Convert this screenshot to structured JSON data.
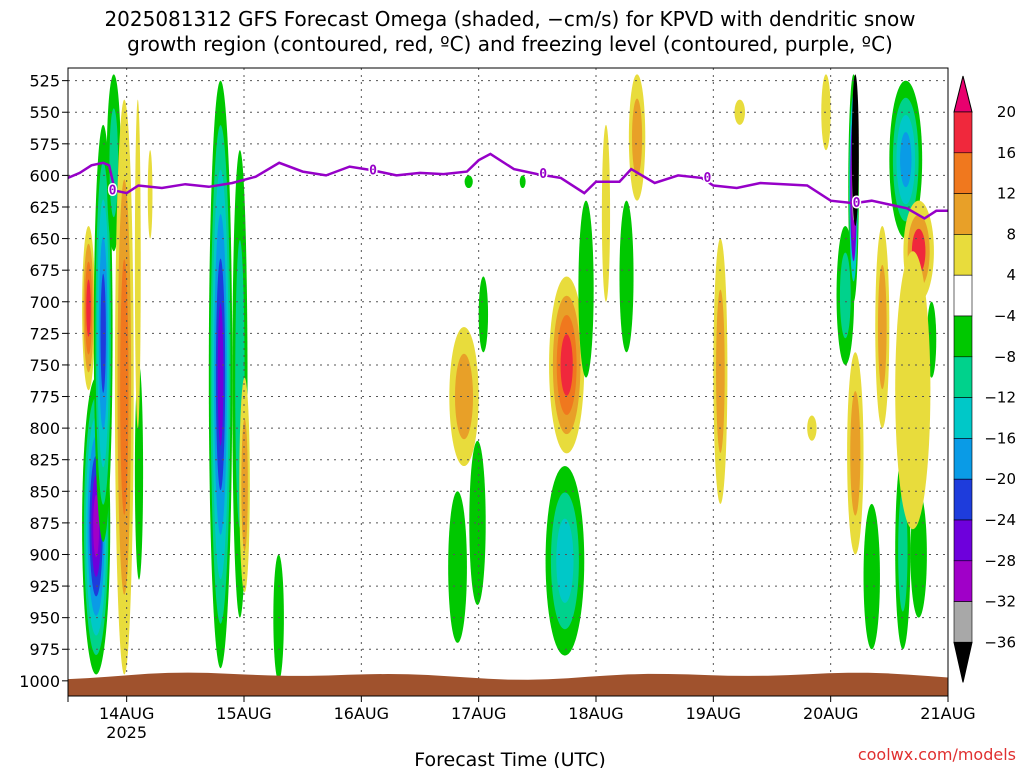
{
  "chart_data": {
    "type": "heatmap",
    "title_lines": [
      "2025081312 GFS Forecast Omega (shaded, −cm/s) for KPVD with dendritic snow",
      "growth region (contoured, red, ºC) and freezing level (contoured, purple, ºC)"
    ],
    "xlabel": "Forecast Time (UTC)",
    "ylabel": "",
    "credit": "coolwx.com/models",
    "x_ticks": [
      {
        "day": 13.5,
        "label": "",
        "sublabel": ""
      },
      {
        "day": 14,
        "label": "14AUG",
        "sublabel": "2025"
      },
      {
        "day": 15,
        "label": "15AUG",
        "sublabel": ""
      },
      {
        "day": 16,
        "label": "16AUG",
        "sublabel": ""
      },
      {
        "day": 17,
        "label": "17AUG",
        "sublabel": ""
      },
      {
        "day": 18,
        "label": "18AUG",
        "sublabel": ""
      },
      {
        "day": 19,
        "label": "19AUG",
        "sublabel": ""
      },
      {
        "day": 20,
        "label": "20AUG",
        "sublabel": ""
      },
      {
        "day": 21,
        "label": "21AUG",
        "sublabel": ""
      }
    ],
    "xlim": [
      13.5,
      21
    ],
    "y_ticks": [
      "525",
      "550",
      "575",
      "600",
      "625",
      "650",
      "675",
      "700",
      "725",
      "750",
      "775",
      "800",
      "825",
      "850",
      "875",
      "900",
      "925",
      "950",
      "975",
      "1000"
    ],
    "ylim": [
      1012,
      515
    ],
    "y_axis": "pressure (hPa), inverted",
    "grid": true,
    "colorbar": {
      "labels": [
        "20",
        "16",
        "12",
        "8",
        "4",
        "−4",
        "−8",
        "−12",
        "−16",
        "−20",
        "−24",
        "−28",
        "−32",
        "−36"
      ],
      "colors": [
        "#e8006e",
        "#f0283c",
        "#f0781e",
        "#e8a028",
        "#e8dc3c",
        "#ffffff",
        "#00c800",
        "#00d28c",
        "#00c8c8",
        "#0a9be6",
        "#1e3cdc",
        "#6e00dc",
        "#a000c8",
        "#a8a8a8",
        "#000000"
      ]
    },
    "freezing_level": {
      "label": "0",
      "color": "#9600c8",
      "points": [
        [
          13.5,
          602
        ],
        [
          13.6,
          598
        ],
        [
          13.7,
          592
        ],
        [
          13.8,
          590
        ],
        [
          13.85,
          592
        ],
        [
          13.9,
          612
        ],
        [
          14.0,
          614
        ],
        [
          14.1,
          608
        ],
        [
          14.3,
          610
        ],
        [
          14.5,
          607
        ],
        [
          14.7,
          609
        ],
        [
          14.9,
          606
        ],
        [
          15.1,
          601
        ],
        [
          15.3,
          590
        ],
        [
          15.5,
          597
        ],
        [
          15.7,
          600
        ],
        [
          15.9,
          593
        ],
        [
          16.1,
          596
        ],
        [
          16.3,
          600
        ],
        [
          16.5,
          598
        ],
        [
          16.7,
          599
        ],
        [
          16.9,
          597
        ],
        [
          17.0,
          588
        ],
        [
          17.1,
          583
        ],
        [
          17.3,
          595
        ],
        [
          17.5,
          599
        ],
        [
          17.7,
          602
        ],
        [
          17.9,
          614
        ],
        [
          18.0,
          605
        ],
        [
          18.2,
          605
        ],
        [
          18.3,
          595
        ],
        [
          18.5,
          606
        ],
        [
          18.7,
          600
        ],
        [
          18.9,
          602
        ],
        [
          19.0,
          608
        ],
        [
          19.2,
          610
        ],
        [
          19.4,
          606
        ],
        [
          19.6,
          607
        ],
        [
          19.8,
          608
        ],
        [
          20.0,
          620
        ],
        [
          20.2,
          622
        ],
        [
          20.35,
          620
        ],
        [
          20.5,
          623
        ],
        [
          20.65,
          626
        ],
        [
          20.8,
          634
        ],
        [
          20.9,
          628
        ],
        [
          21.0,
          628
        ]
      ]
    },
    "ground": {
      "color": "#a0522d",
      "top_hpa": 996
    },
    "omega_regions": [
      {
        "x0": 13.62,
        "x1": 13.86,
        "p0": 760,
        "p1": 995,
        "colors": [
          "#00c800",
          "#00d28c",
          "#00c8c8",
          "#0a9be6",
          "#1e3cdc",
          "#6e00dc",
          "#a000c8"
        ]
      },
      {
        "x0": 13.62,
        "x1": 13.73,
        "p0": 640,
        "p1": 770,
        "colors": [
          "#e8dc3c",
          "#e8a028",
          "#f0781e",
          "#f0283c"
        ]
      },
      {
        "x0": 13.72,
        "x1": 13.88,
        "p0": 560,
        "p1": 890,
        "colors": [
          "#00c800",
          "#00d28c",
          "#00c8c8",
          "#0a9be6",
          "#1e3cdc"
        ]
      },
      {
        "x0": 13.83,
        "x1": 13.95,
        "p0": 520,
        "p1": 660,
        "colors": [
          "#00c800",
          "#00d28c"
        ]
      },
      {
        "x0": 13.9,
        "x1": 14.06,
        "p0": 540,
        "p1": 995,
        "colors": [
          "#e8dc3c",
          "#e8a028",
          "#f0781e"
        ]
      },
      {
        "x0": 14.07,
        "x1": 14.14,
        "p0": 750,
        "p1": 920,
        "colors": [
          "#00c800"
        ]
      },
      {
        "x0": 14.07,
        "x1": 14.12,
        "p0": 540,
        "p1": 800,
        "colors": [
          "#e8dc3c"
        ]
      },
      {
        "x0": 14.18,
        "x1": 14.22,
        "p0": 580,
        "p1": 650,
        "colors": [
          "#e8dc3c"
        ]
      },
      {
        "x0": 14.7,
        "x1": 14.9,
        "p0": 525,
        "p1": 990,
        "colors": [
          "#00c800",
          "#00d28c",
          "#00c8c8",
          "#0a9be6",
          "#1e3cdc",
          "#6e00dc"
        ]
      },
      {
        "x0": 14.9,
        "x1": 15.03,
        "p0": 580,
        "p1": 950,
        "colors": [
          "#00c800",
          "#00d28c"
        ]
      },
      {
        "x0": 14.96,
        "x1": 15.05,
        "p0": 760,
        "p1": 930,
        "colors": [
          "#e8dc3c",
          "#e8a028"
        ]
      },
      {
        "x0": 15.25,
        "x1": 15.34,
        "p0": 900,
        "p1": 1000,
        "colors": [
          "#00c800"
        ]
      },
      {
        "x0": 16.75,
        "x1": 17.0,
        "p0": 720,
        "p1": 830,
        "colors": [
          "#e8dc3c",
          "#e8a028"
        ]
      },
      {
        "x0": 16.74,
        "x1": 16.9,
        "p0": 850,
        "p1": 970,
        "colors": [
          "#00c800"
        ]
      },
      {
        "x0": 17.0,
        "x1": 17.08,
        "p0": 680,
        "p1": 740,
        "colors": [
          "#00c800"
        ]
      },
      {
        "x0": 16.92,
        "x1": 17.06,
        "p0": 810,
        "p1": 940,
        "colors": [
          "#00c800"
        ]
      },
      {
        "x0": 17.6,
        "x1": 17.9,
        "p0": 680,
        "p1": 820,
        "colors": [
          "#e8dc3c",
          "#e8a028",
          "#f0781e",
          "#f0283c"
        ]
      },
      {
        "x0": 17.57,
        "x1": 17.9,
        "p0": 830,
        "p1": 980,
        "colors": [
          "#00c800",
          "#00d28c",
          "#00c8c8"
        ]
      },
      {
        "x0": 17.85,
        "x1": 17.98,
        "p0": 620,
        "p1": 760,
        "colors": [
          "#00c800"
        ]
      },
      {
        "x0": 18.05,
        "x1": 18.12,
        "p0": 560,
        "p1": 700,
        "colors": [
          "#e8dc3c"
        ]
      },
      {
        "x0": 18.2,
        "x1": 18.32,
        "p0": 620,
        "p1": 740,
        "colors": [
          "#00c800"
        ]
      },
      {
        "x0": 18.28,
        "x1": 18.42,
        "p0": 520,
        "p1": 620,
        "colors": [
          "#e8dc3c",
          "#e8a028"
        ]
      },
      {
        "x0": 19.0,
        "x1": 19.12,
        "p0": 650,
        "p1": 860,
        "colors": [
          "#e8dc3c",
          "#e8a028"
        ]
      },
      {
        "x0": 19.18,
        "x1": 19.27,
        "p0": 540,
        "p1": 560,
        "colors": [
          "#e8dc3c"
        ]
      },
      {
        "x0": 19.92,
        "x1": 20.0,
        "p0": 520,
        "p1": 580,
        "colors": [
          "#e8dc3c"
        ]
      },
      {
        "x0": 20.05,
        "x1": 20.2,
        "p0": 640,
        "p1": 750,
        "colors": [
          "#00c800",
          "#00d28c"
        ]
      },
      {
        "x0": 20.15,
        "x1": 20.24,
        "p0": 520,
        "p1": 700,
        "colors": [
          "#00c800",
          "#00c8c8",
          "#6e00dc",
          "#a000c8",
          "#a8a8a8"
        ]
      },
      {
        "x0": 20.18,
        "x1": 20.24,
        "p0": 520,
        "p1": 640,
        "colors": [
          "#000000"
        ]
      },
      {
        "x0": 20.14,
        "x1": 20.28,
        "p0": 740,
        "p1": 900,
        "colors": [
          "#e8dc3c",
          "#e8a028"
        ]
      },
      {
        "x0": 20.28,
        "x1": 20.42,
        "p0": 860,
        "p1": 975,
        "colors": [
          "#00c800"
        ]
      },
      {
        "x0": 20.38,
        "x1": 20.5,
        "p0": 640,
        "p1": 800,
        "colors": [
          "#e8dc3c",
          "#e8a028"
        ]
      },
      {
        "x0": 20.5,
        "x1": 20.78,
        "p0": 525,
        "p1": 650,
        "colors": [
          "#00c800",
          "#00d28c",
          "#00c8c8",
          "#0a9be6"
        ]
      },
      {
        "x0": 20.62,
        "x1": 20.88,
        "p0": 620,
        "p1": 700,
        "colors": [
          "#e8dc3c",
          "#e8a028",
          "#f0283c"
        ]
      },
      {
        "x0": 20.55,
        "x1": 20.68,
        "p0": 820,
        "p1": 975,
        "colors": [
          "#00c800",
          "#00d28c"
        ]
      },
      {
        "x0": 20.68,
        "x1": 20.82,
        "p0": 850,
        "p1": 950,
        "colors": [
          "#00c800"
        ]
      },
      {
        "x0": 20.82,
        "x1": 20.9,
        "p0": 700,
        "p1": 760,
        "colors": [
          "#00c800"
        ]
      },
      {
        "x0": 19.8,
        "x1": 19.88,
        "p0": 790,
        "p1": 810,
        "colors": [
          "#e8dc3c"
        ]
      },
      {
        "x0": 20.55,
        "x1": 20.85,
        "p0": 660,
        "p1": 880,
        "colors": [
          "#e8dc3c"
        ]
      },
      {
        "x0": 16.88,
        "x1": 16.95,
        "p0": 600,
        "p1": 610,
        "colors": [
          "#00c800"
        ]
      },
      {
        "x0": 17.35,
        "x1": 17.4,
        "p0": 600,
        "p1": 610,
        "colors": [
          "#00c800"
        ]
      }
    ]
  }
}
